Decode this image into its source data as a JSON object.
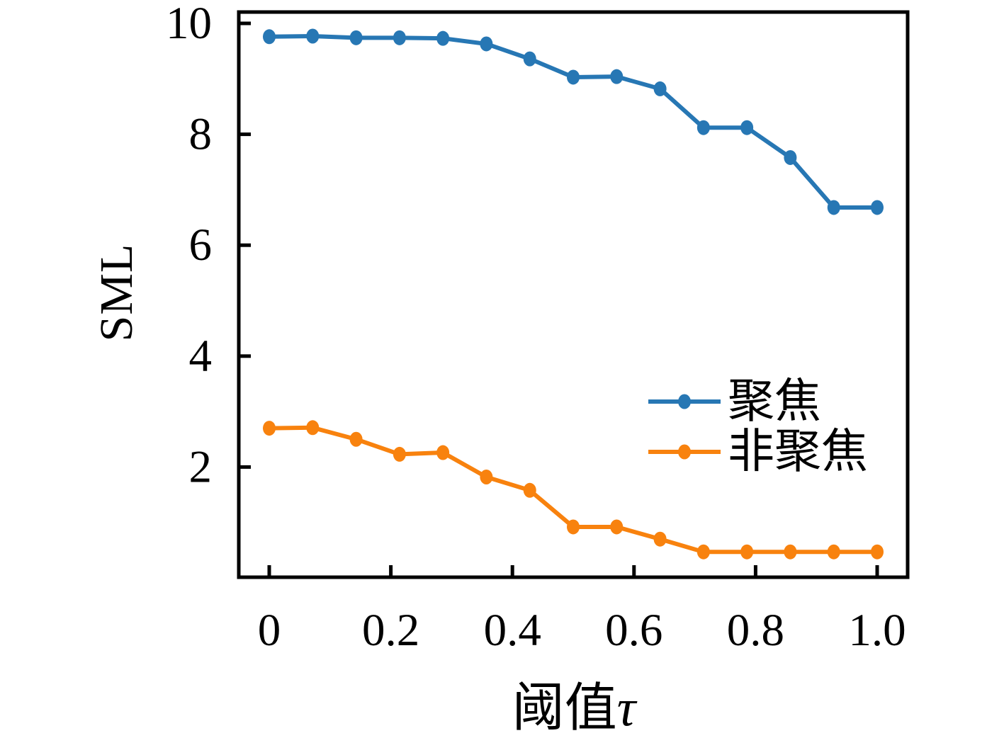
{
  "figure": {
    "background": "#ffffff",
    "axis_color": "#000000"
  },
  "chart_data": {
    "type": "line",
    "title": "",
    "xlabel": "阈值τ",
    "xlabel_cjk": "阈值",
    "xlabel_symbol": "τ",
    "ylabel": "SML",
    "xlim": [
      -0.05,
      1.05
    ],
    "ylim": [
      0,
      10.2
    ],
    "grid": false,
    "legend_position": "inside-lower-right",
    "x": [
      0,
      0.0714,
      0.1429,
      0.2143,
      0.2857,
      0.3571,
      0.4286,
      0.5,
      0.5714,
      0.6429,
      0.7143,
      0.7857,
      0.8571,
      0.9286,
      1.0
    ],
    "xticks": {
      "values": [
        0,
        0.2,
        0.4,
        0.6,
        0.8,
        1.0
      ],
      "labels": [
        "0",
        "0.2",
        "0.4",
        "0.6",
        "0.8",
        "1.0"
      ]
    },
    "yticks": {
      "values": [
        2,
        4,
        6,
        8,
        10
      ],
      "labels": [
        "2",
        "4",
        "6",
        "8",
        "10"
      ]
    },
    "series": [
      {
        "key": "focused",
        "name": "聚焦",
        "color": "#2777b4",
        "values": [
          9.76,
          9.77,
          9.74,
          9.74,
          9.73,
          9.63,
          9.36,
          9.03,
          9.04,
          8.82,
          8.12,
          8.12,
          7.58,
          6.68,
          6.68
        ]
      },
      {
        "key": "unfocused",
        "name": "非聚焦",
        "color": "#f8820e",
        "values": [
          2.7,
          2.71,
          2.5,
          2.23,
          2.26,
          1.82,
          1.58,
          0.92,
          0.92,
          0.7,
          0.47,
          0.47,
          0.47,
          0.47,
          0.47
        ]
      }
    ]
  }
}
